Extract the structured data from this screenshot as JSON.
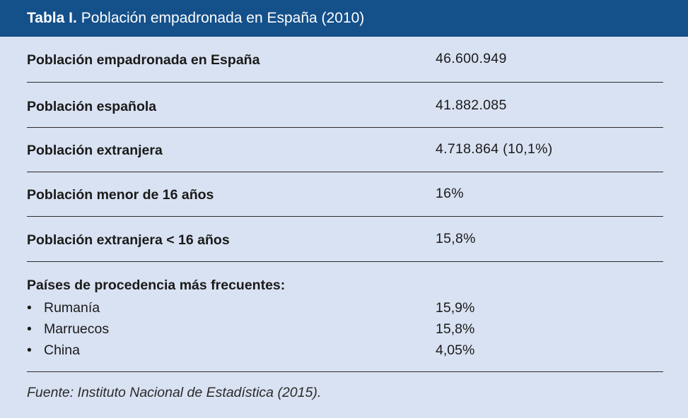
{
  "header": {
    "label": "Tabla I.",
    "title": "Población empadronada en España (2010)"
  },
  "rows": [
    {
      "label": "Población empadronada en España",
      "value": "46.600.949"
    },
    {
      "label": "Población española",
      "value": "41.882.085"
    },
    {
      "label": "Población extranjera",
      "value": "4.718.864 (10,1%)"
    },
    {
      "label": "Población menor de 16 años",
      "value": "16%"
    },
    {
      "label": "Población extranjera < 16 años",
      "value": "15,8%"
    }
  ],
  "countries": {
    "heading": "Países de procedencia más frecuentes:",
    "bullet": "•",
    "items": [
      {
        "name": "Rumanía",
        "value": "15,9%"
      },
      {
        "name": "Marruecos",
        "value": "15,8%"
      },
      {
        "name": "China",
        "value": "4,05%"
      }
    ]
  },
  "source": "Fuente: Instituto Nacional de Estadística (2015)."
}
